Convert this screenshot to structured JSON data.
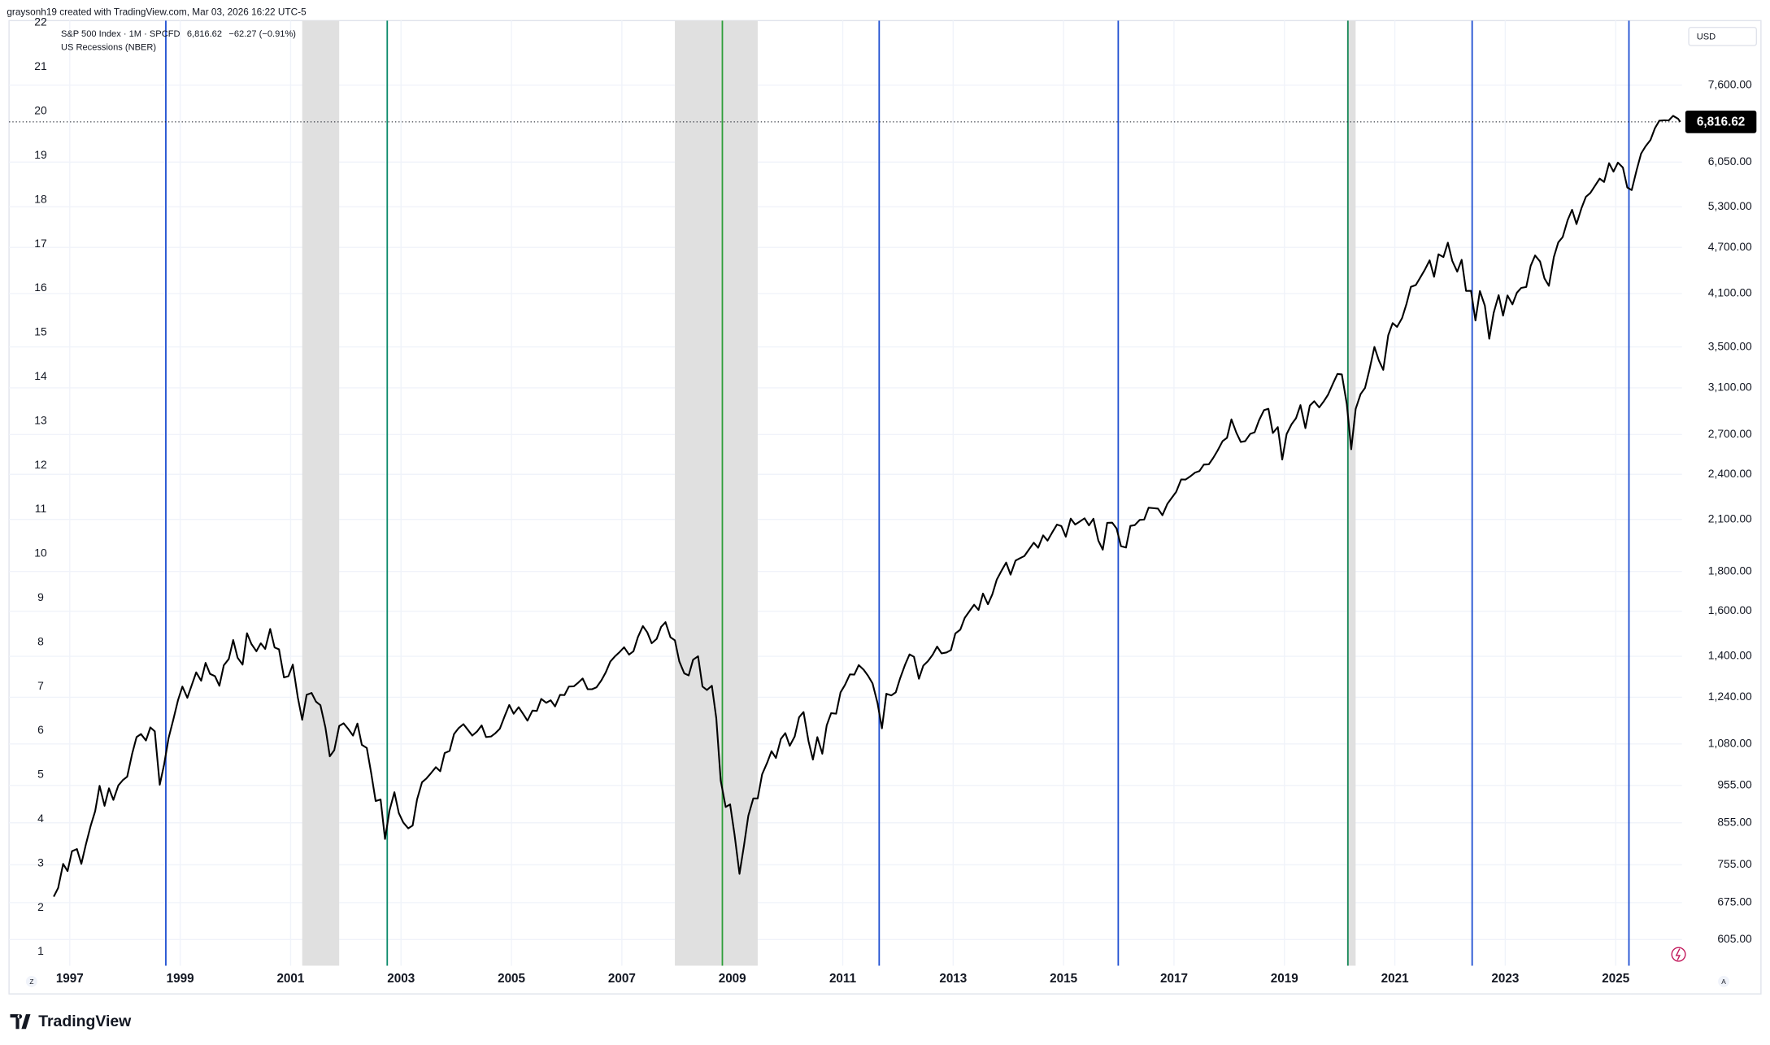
{
  "chart_data": {
    "type": "line",
    "header": "graysonh19 created with TradingView.com, Mar 03, 2026 16:22 UTC-5",
    "currency": "USD",
    "brand": "TradingView",
    "ui_buttons": [
      "Z",
      "A"
    ],
    "log_scale": true,
    "grid": true,
    "series": [
      {
        "name": "S&P 500 Index · 1M · SPCFD",
        "color": "#000000",
        "values": [
          687,
          705,
          757,
          741,
          786,
          791,
          757,
          801,
          848,
          885,
          954,
          899,
          947,
          915,
          955,
          970,
          980,
          1049,
          1102,
          1112,
          1091,
          1134,
          1121,
          957,
          1017,
          1099,
          1164,
          1229,
          1280,
          1238,
          1286,
          1335,
          1302,
          1373,
          1329,
          1320,
          1283,
          1363,
          1389,
          1469,
          1394,
          1366,
          1499,
          1452,
          1421,
          1455,
          1431,
          1518,
          1437,
          1429,
          1315,
          1320,
          1366,
          1240,
          1160,
          1249,
          1256,
          1224,
          1211,
          1134,
          1041,
          1060,
          1139,
          1148,
          1130,
          1107,
          1147,
          1077,
          1067,
          990,
          912,
          916,
          815,
          886,
          936,
          880,
          856,
          841,
          848,
          916,
          964,
          975,
          990,
          1008,
          996,
          1051,
          1058,
          1112,
          1131,
          1145,
          1126,
          1107,
          1121,
          1141,
          1102,
          1104,
          1115,
          1130,
          1174,
          1212,
          1181,
          1204,
          1181,
          1157,
          1192,
          1191,
          1234,
          1220,
          1229,
          1207,
          1249,
          1248,
          1280,
          1281,
          1295,
          1311,
          1270,
          1270,
          1277,
          1304,
          1336,
          1378,
          1401,
          1418,
          1438,
          1407,
          1421,
          1482,
          1531,
          1503,
          1455,
          1474,
          1527,
          1549,
          1481,
          1468,
          1379,
          1331,
          1323,
          1386,
          1400,
          1280,
          1267,
          1283,
          1165,
          969,
          896,
          903,
          826,
          735,
          798,
          873,
          919,
          919,
          987,
          1021,
          1057,
          1036,
          1096,
          1115,
          1074,
          1104,
          1169,
          1187,
          1089,
          1031,
          1102,
          1049,
          1141,
          1183,
          1181,
          1258,
          1286,
          1327,
          1326,
          1364,
          1345,
          1321,
          1292,
          1219,
          1131,
          1253,
          1247,
          1258,
          1312,
          1366,
          1408,
          1398,
          1310,
          1362,
          1379,
          1407,
          1441,
          1412,
          1416,
          1426,
          1498,
          1515,
          1569,
          1598,
          1631,
          1606,
          1686,
          1633,
          1682,
          1757,
          1806,
          1848,
          1783,
          1859,
          1872,
          1884,
          1924,
          1960,
          1931,
          2003,
          1972,
          2018,
          2068,
          2059,
          1995,
          2105,
          2068,
          2086,
          2107,
          2063,
          2104,
          1972,
          1920,
          2079,
          2080,
          2044,
          1940,
          1932,
          2060,
          2065,
          2097,
          2099,
          2174,
          2171,
          2168,
          2126,
          2199,
          2239,
          2279,
          2364,
          2363,
          2384,
          2412,
          2423,
          2470,
          2472,
          2519,
          2575,
          2648,
          2674,
          2824,
          2714,
          2641,
          2648,
          2705,
          2718,
          2816,
          2902,
          2914,
          2712,
          2760,
          2507,
          2704,
          2784,
          2834,
          2946,
          2752,
          2942,
          2980,
          2926,
          2977,
          3038,
          3141,
          3231,
          3226,
          2954,
          2585,
          2912,
          3044,
          3100,
          3271,
          3500,
          3363,
          3270,
          3622,
          3756,
          3714,
          3811,
          3973,
          4181,
          4204,
          4298,
          4395,
          4523,
          4308,
          4605,
          4567,
          4766,
          4516,
          4374,
          4530,
          4132,
          4132,
          3785,
          4130,
          3955,
          3586,
          3872,
          4080,
          3840,
          4077,
          3970,
          4109,
          4169,
          4180,
          4450,
          4589,
          4508,
          4288,
          4194,
          4568,
          4770,
          4846,
          5096,
          5254,
          5036,
          5278,
          5460,
          5522,
          5648,
          5762,
          5705,
          6032,
          5882,
          6041,
          5955,
          5612,
          5569,
          5912,
          6205,
          6339,
          6460,
          6688,
          6840,
          6849,
          6845,
          6939,
          6879,
          6816.62
        ]
      }
    ],
    "x": [
      1996.71,
      1996.79,
      1996.88,
      1996.96,
      1997.04,
      1997.13,
      1997.21,
      1997.29,
      1997.38,
      1997.46,
      1997.54,
      1997.63,
      1997.71,
      1997.79,
      1997.88,
      1997.96,
      1998.04,
      1998.13,
      1998.21,
      1998.29,
      1998.38,
      1998.46,
      1998.54,
      1998.63,
      1998.71,
      1998.79,
      1998.88,
      1998.96,
      1999.04,
      1999.13,
      1999.21,
      1999.29,
      1999.38,
      1999.46,
      1999.54,
      1999.63,
      1999.71,
      1999.79,
      1999.88,
      1999.96,
      2000.04,
      2000.13,
      2000.21,
      2000.29,
      2000.38,
      2000.46,
      2000.54,
      2000.63,
      2000.71,
      2000.79,
      2000.88,
      2000.96,
      2001.04,
      2001.13,
      2001.21,
      2001.29,
      2001.38,
      2001.46,
      2001.54,
      2001.63,
      2001.71,
      2001.79,
      2001.88,
      2001.96,
      2002.04,
      2002.13,
      2002.21,
      2002.29,
      2002.38,
      2002.46,
      2002.54,
      2002.63,
      2002.71,
      2002.79,
      2002.88,
      2002.96,
      2003.04,
      2003.13,
      2003.21,
      2003.29,
      2003.38,
      2003.46,
      2003.54,
      2003.63,
      2003.71,
      2003.79,
      2003.88,
      2003.96,
      2004.04,
      2004.13,
      2004.21,
      2004.29,
      2004.38,
      2004.46,
      2004.54,
      2004.63,
      2004.71,
      2004.79,
      2004.88,
      2004.96,
      2005.04,
      2005.13,
      2005.21,
      2005.29,
      2005.38,
      2005.46,
      2005.54,
      2005.63,
      2005.71,
      2005.79,
      2005.88,
      2005.96,
      2006.04,
      2006.13,
      2006.21,
      2006.29,
      2006.38,
      2006.46,
      2006.54,
      2006.63,
      2006.71,
      2006.79,
      2006.88,
      2006.96,
      2007.04,
      2007.13,
      2007.21,
      2007.29,
      2007.38,
      2007.46,
      2007.54,
      2007.63,
      2007.71,
      2007.79,
      2007.88,
      2007.96,
      2008.04,
      2008.13,
      2008.21,
      2008.29,
      2008.38,
      2008.46,
      2008.54,
      2008.63,
      2008.71,
      2008.79,
      2008.88,
      2008.96,
      2009.04,
      2009.13,
      2009.21,
      2009.29,
      2009.38,
      2009.46,
      2009.54,
      2009.63,
      2009.71,
      2009.79,
      2009.88,
      2009.96,
      2010.04,
      2010.13,
      2010.21,
      2010.29,
      2010.38,
      2010.46,
      2010.54,
      2010.63,
      2010.71,
      2010.79,
      2010.88,
      2010.96,
      2011.04,
      2011.13,
      2011.21,
      2011.29,
      2011.38,
      2011.46,
      2011.54,
      2011.63,
      2011.71,
      2011.79,
      2011.88,
      2011.96,
      2012.04,
      2012.13,
      2012.21,
      2012.29,
      2012.38,
      2012.46,
      2012.54,
      2012.63,
      2012.71,
      2012.79,
      2012.88,
      2012.96,
      2013.04,
      2013.13,
      2013.21,
      2013.29,
      2013.38,
      2013.46,
      2013.54,
      2013.63,
      2013.71,
      2013.79,
      2013.88,
      2013.96,
      2014.04,
      2014.13,
      2014.21,
      2014.29,
      2014.38,
      2014.46,
      2014.54,
      2014.63,
      2014.71,
      2014.79,
      2014.88,
      2014.96,
      2015.04,
      2015.13,
      2015.21,
      2015.29,
      2015.38,
      2015.46,
      2015.54,
      2015.63,
      2015.71,
      2015.79,
      2015.88,
      2015.96,
      2016.04,
      2016.13,
      2016.21,
      2016.29,
      2016.38,
      2016.46,
      2016.54,
      2016.63,
      2016.71,
      2016.79,
      2016.88,
      2016.96,
      2017.04,
      2017.13,
      2017.21,
      2017.29,
      2017.38,
      2017.46,
      2017.54,
      2017.63,
      2017.71,
      2017.79,
      2017.88,
      2017.96,
      2018.04,
      2018.13,
      2018.21,
      2018.29,
      2018.38,
      2018.46,
      2018.54,
      2018.63,
      2018.71,
      2018.79,
      2018.88,
      2018.96,
      2019.04,
      2019.13,
      2019.21,
      2019.29,
      2019.38,
      2019.46,
      2019.54,
      2019.63,
      2019.71,
      2019.79,
      2019.88,
      2019.96,
      2020.04,
      2020.13,
      2020.21,
      2020.29,
      2020.38,
      2020.46,
      2020.54,
      2020.63,
      2020.71,
      2020.79,
      2020.88,
      2020.96,
      2021.04,
      2021.13,
      2021.21,
      2021.29,
      2021.38,
      2021.46,
      2021.54,
      2021.63,
      2021.71,
      2021.79,
      2021.88,
      2021.96,
      2022.04,
      2022.13,
      2022.21,
      2022.29,
      2022.38,
      2022.46,
      2022.54,
      2022.63,
      2022.71,
      2022.79,
      2022.88,
      2022.96,
      2023.04,
      2023.13,
      2023.21,
      2023.29,
      2023.38,
      2023.46,
      2023.54,
      2023.63,
      2023.71,
      2023.79,
      2023.88,
      2023.96,
      2024.04,
      2024.13,
      2024.21,
      2024.29,
      2024.38,
      2024.46,
      2024.54,
      2024.63,
      2024.71,
      2024.79,
      2024.88,
      2024.96,
      2025.04,
      2025.13,
      2025.21,
      2025.29,
      2025.38,
      2025.46,
      2025.54,
      2025.63,
      2025.71,
      2025.79,
      2025.88,
      2025.96,
      2026.04,
      2026.13,
      2026.17
    ],
    "last_price": {
      "value": 6816.62,
      "label": "6,816.62"
    },
    "change": "−62.27 (−0.91%)",
    "recessions": {
      "name": "US Recessions (NBER)",
      "color": "#e0e0e0",
      "ranges": [
        [
          2001.21,
          2001.88
        ],
        [
          2007.96,
          2009.46
        ],
        [
          2020.13,
          2020.29
        ]
      ]
    },
    "vlines": [
      {
        "x": 1998.74,
        "color": "#1f4fd1"
      },
      {
        "x": 2002.75,
        "color": "#0b8a6a"
      },
      {
        "x": 2008.82,
        "color": "#2e9e3a"
      },
      {
        "x": 2011.66,
        "color": "#1f4fd1"
      },
      {
        "x": 2015.99,
        "color": "#1f4fd1"
      },
      {
        "x": 2020.15,
        "color": "#1a8a5a"
      },
      {
        "x": 2022.4,
        "color": "#1f4fd1"
      },
      {
        "x": 2025.24,
        "color": "#1f4fd1"
      }
    ],
    "xlim": [
      1995.9,
      2026.2
    ],
    "xticks": [
      1997,
      1999,
      2001,
      2003,
      2005,
      2007,
      2009,
      2011,
      2013,
      2015,
      2017,
      2019,
      2021,
      2023,
      2025
    ],
    "ylim": [
      560,
      9200
    ],
    "yticks": [
      {
        "value": 605,
        "label": "605.00"
      },
      {
        "value": 675,
        "label": "675.00"
      },
      {
        "value": 755,
        "label": "755.00"
      },
      {
        "value": 855,
        "label": "855.00"
      },
      {
        "value": 955,
        "label": "955.00"
      },
      {
        "value": 1080,
        "label": "1,080.00"
      },
      {
        "value": 1240,
        "label": "1,240.00"
      },
      {
        "value": 1400,
        "label": "1,400.00"
      },
      {
        "value": 1600,
        "label": "1,600.00"
      },
      {
        "value": 1800,
        "label": "1,800.00"
      },
      {
        "value": 2100,
        "label": "2,100.00"
      },
      {
        "value": 2400,
        "label": "2,400.00"
      },
      {
        "value": 2700,
        "label": "2,700.00"
      },
      {
        "value": 3100,
        "label": "3,100.00"
      },
      {
        "value": 3500,
        "label": "3,500.00"
      },
      {
        "value": 4100,
        "label": "4,100.00"
      },
      {
        "value": 4700,
        "label": "4,700.00"
      },
      {
        "value": 5300,
        "label": "5,300.00"
      },
      {
        "value": 6050,
        "label": "6,050.00"
      },
      {
        "value": 7600,
        "label": "7,600.00"
      }
    ],
    "y2lim": [
      0.69,
      22.05
    ],
    "y2ticks": [
      1,
      2,
      3,
      4,
      5,
      6,
      7,
      8,
      9,
      10,
      11,
      12,
      13,
      14,
      15,
      16,
      17,
      18,
      19,
      20,
      21,
      22
    ]
  }
}
